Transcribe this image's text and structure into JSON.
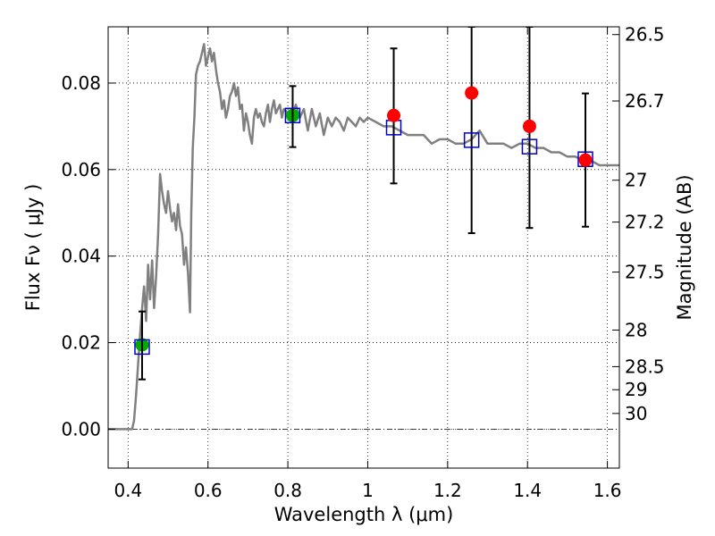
{
  "chart_data": {
    "type": "scatter",
    "xlabel": "Wavelength  λ (μm)",
    "ylabel": "Flux  Fν  ( μJy )",
    "ylabel_right": "Magnitude (AB)",
    "xlim": [
      0.35,
      1.63
    ],
    "ylim": [
      -0.009,
      0.093
    ],
    "grid": true,
    "x_ticks": [
      {
        "value": 0.4,
        "label": "0.4"
      },
      {
        "value": 0.6,
        "label": "0.6"
      },
      {
        "value": 0.8,
        "label": "0.8"
      },
      {
        "value": 1.0,
        "label": "1"
      },
      {
        "value": 1.2,
        "label": "1.2"
      },
      {
        "value": 1.4,
        "label": "1.4"
      },
      {
        "value": 1.6,
        "label": "1.6"
      }
    ],
    "y_ticks": [
      {
        "value": 0.0,
        "label": "0.00"
      },
      {
        "value": 0.02,
        "label": "0.02"
      },
      {
        "value": 0.04,
        "label": "0.04"
      },
      {
        "value": 0.06,
        "label": "0.06"
      },
      {
        "value": 0.08,
        "label": "0.08"
      }
    ],
    "mag_ticks": [
      {
        "value": 26.5,
        "label": "26.5"
      },
      {
        "value": 26.7,
        "label": "26.7"
      },
      {
        "value": 27,
        "label": "27"
      },
      {
        "value": 27.2,
        "label": "27.2"
      },
      {
        "value": 27.5,
        "label": "27.5"
      },
      {
        "value": 28,
        "label": "28"
      },
      {
        "value": 28.5,
        "label": "28.5"
      },
      {
        "value": 29,
        "label": "29"
      },
      {
        "value": 30,
        "label": "30"
      }
    ],
    "model_spectrum": {
      "color": "#808080",
      "points": [
        [
          0.35,
          0.0
        ],
        [
          0.41,
          0.0
        ],
        [
          0.415,
          0.002
        ],
        [
          0.42,
          0.008
        ],
        [
          0.425,
          0.015
        ],
        [
          0.43,
          0.022
        ],
        [
          0.435,
          0.028
        ],
        [
          0.44,
          0.033
        ],
        [
          0.445,
          0.025
        ],
        [
          0.45,
          0.038
        ],
        [
          0.455,
          0.03
        ],
        [
          0.46,
          0.039
        ],
        [
          0.465,
          0.028
        ],
        [
          0.47,
          0.035
        ],
        [
          0.475,
          0.045
        ],
        [
          0.48,
          0.059
        ],
        [
          0.485,
          0.055
        ],
        [
          0.49,
          0.052
        ],
        [
          0.495,
          0.05
        ],
        [
          0.5,
          0.055
        ],
        [
          0.505,
          0.051
        ],
        [
          0.51,
          0.048
        ],
        [
          0.515,
          0.05
        ],
        [
          0.52,
          0.046
        ],
        [
          0.525,
          0.052
        ],
        [
          0.53,
          0.047
        ],
        [
          0.535,
          0.045
        ],
        [
          0.54,
          0.038
        ],
        [
          0.545,
          0.042
        ],
        [
          0.55,
          0.036
        ],
        [
          0.555,
          0.027
        ],
        [
          0.558,
          0.05
        ],
        [
          0.562,
          0.065
        ],
        [
          0.566,
          0.072
        ],
        [
          0.57,
          0.082
        ],
        [
          0.575,
          0.084
        ],
        [
          0.58,
          0.085
        ],
        [
          0.585,
          0.087
        ],
        [
          0.59,
          0.089
        ],
        [
          0.595,
          0.084
        ],
        [
          0.6,
          0.086
        ],
        [
          0.605,
          0.088
        ],
        [
          0.61,
          0.085
        ],
        [
          0.615,
          0.087
        ],
        [
          0.62,
          0.083
        ],
        [
          0.625,
          0.08
        ],
        [
          0.63,
          0.078
        ],
        [
          0.635,
          0.074
        ],
        [
          0.64,
          0.076
        ],
        [
          0.645,
          0.072
        ],
        [
          0.65,
          0.074
        ],
        [
          0.655,
          0.077
        ],
        [
          0.66,
          0.078
        ],
        [
          0.665,
          0.08
        ],
        [
          0.67,
          0.077
        ],
        [
          0.675,
          0.079
        ],
        [
          0.68,
          0.074
        ],
        [
          0.685,
          0.075
        ],
        [
          0.69,
          0.069
        ],
        [
          0.695,
          0.073
        ],
        [
          0.7,
          0.071
        ],
        [
          0.705,
          0.068
        ],
        [
          0.71,
          0.066
        ],
        [
          0.715,
          0.072
        ],
        [
          0.72,
          0.074
        ],
        [
          0.725,
          0.072
        ],
        [
          0.73,
          0.073
        ],
        [
          0.735,
          0.071
        ],
        [
          0.74,
          0.07
        ],
        [
          0.745,
          0.073
        ],
        [
          0.75,
          0.075
        ],
        [
          0.755,
          0.071
        ],
        [
          0.76,
          0.074
        ],
        [
          0.765,
          0.076
        ],
        [
          0.77,
          0.073
        ],
        [
          0.775,
          0.074
        ],
        [
          0.78,
          0.075
        ],
        [
          0.785,
          0.072
        ],
        [
          0.79,
          0.074
        ],
        [
          0.8,
          0.073
        ],
        [
          0.81,
          0.072
        ],
        [
          0.82,
          0.075
        ],
        [
          0.83,
          0.072
        ],
        [
          0.84,
          0.074
        ],
        [
          0.85,
          0.069
        ],
        [
          0.86,
          0.074
        ],
        [
          0.87,
          0.07
        ],
        [
          0.88,
          0.073
        ],
        [
          0.89,
          0.068
        ],
        [
          0.9,
          0.072
        ],
        [
          0.91,
          0.07
        ],
        [
          0.92,
          0.072
        ],
        [
          0.93,
          0.071
        ],
        [
          0.94,
          0.069
        ],
        [
          0.95,
          0.072
        ],
        [
          0.96,
          0.071
        ],
        [
          0.97,
          0.07
        ],
        [
          0.98,
          0.072
        ],
        [
          0.99,
          0.071
        ],
        [
          1.0,
          0.072
        ],
        [
          1.02,
          0.071
        ],
        [
          1.04,
          0.07
        ],
        [
          1.06,
          0.07
        ],
        [
          1.08,
          0.069
        ],
        [
          1.1,
          0.068
        ],
        [
          1.12,
          0.068
        ],
        [
          1.14,
          0.068
        ],
        [
          1.16,
          0.066
        ],
        [
          1.18,
          0.067
        ],
        [
          1.2,
          0.067
        ],
        [
          1.22,
          0.066
        ],
        [
          1.24,
          0.066
        ],
        [
          1.26,
          0.067
        ],
        [
          1.28,
          0.069
        ],
        [
          1.3,
          0.066
        ],
        [
          1.32,
          0.066
        ],
        [
          1.34,
          0.066
        ],
        [
          1.36,
          0.065
        ],
        [
          1.38,
          0.066
        ],
        [
          1.4,
          0.066
        ],
        [
          1.42,
          0.065
        ],
        [
          1.44,
          0.065
        ],
        [
          1.46,
          0.064
        ],
        [
          1.48,
          0.064
        ],
        [
          1.5,
          0.063
        ],
        [
          1.52,
          0.063
        ],
        [
          1.54,
          0.062
        ],
        [
          1.56,
          0.062
        ],
        [
          1.58,
          0.061
        ],
        [
          1.6,
          0.061
        ],
        [
          1.63,
          0.061
        ]
      ]
    },
    "series": [
      {
        "marker": "green filled circle",
        "color": "#00aa00",
        "points": [
          {
            "x": 0.435,
            "y": 0.0195
          },
          {
            "x": 0.812,
            "y": 0.0725
          }
        ]
      },
      {
        "marker": "red filled circle",
        "color": "#ff0000",
        "points": [
          {
            "x": 1.065,
            "y": 0.0725
          },
          {
            "x": 1.26,
            "y": 0.0777
          },
          {
            "x": 1.405,
            "y": 0.07
          },
          {
            "x": 1.545,
            "y": 0.0622
          }
        ]
      },
      {
        "marker": "blue open square with error bar",
        "color": "#0000cc",
        "points": [
          {
            "x": 0.435,
            "y": 0.019,
            "ylow": 0.0115,
            "yhigh": 0.0272
          },
          {
            "x": 0.812,
            "y": 0.0725,
            "ylow": 0.0652,
            "yhigh": 0.0793
          },
          {
            "x": 1.065,
            "y": 0.0697,
            "ylow": 0.0568,
            "yhigh": 0.088
          },
          {
            "x": 1.26,
            "y": 0.0668,
            "ylow": 0.0453,
            "yhigh": 0.093
          },
          {
            "x": 1.405,
            "y": 0.0653,
            "ylow": 0.0465,
            "yhigh": 0.093
          },
          {
            "x": 1.545,
            "y": 0.0624,
            "ylow": 0.0468,
            "yhigh": 0.0776
          }
        ]
      }
    ]
  }
}
